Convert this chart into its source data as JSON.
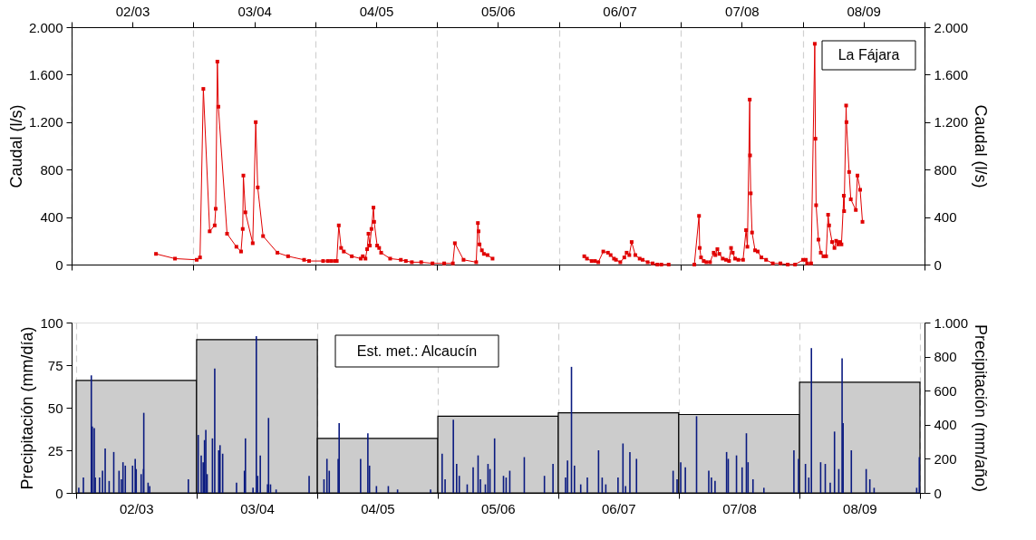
{
  "chart_data": [
    {
      "type": "line",
      "ylabel": "Caudal (l/s)",
      "y2label": "Caudal (l/s)",
      "annotations": [
        "La Fájara"
      ],
      "marker": "square",
      "grid": "x",
      "xlim": [
        "2002-10-01",
        "2009-10-01"
      ],
      "xticks": [
        {
          "value": "2002-10-01",
          "label": null
        },
        {
          "value": "2003-04-01",
          "label": "02/03"
        },
        {
          "value": "2003-10-01",
          "label": null
        },
        {
          "value": "2004-04-01",
          "label": "03/04"
        },
        {
          "value": "2004-10-01",
          "label": null
        },
        {
          "value": "2005-04-01",
          "label": "04/05"
        },
        {
          "value": "2005-10-01",
          "label": null
        },
        {
          "value": "2006-04-01",
          "label": "05/06"
        },
        {
          "value": "2006-10-01",
          "label": null
        },
        {
          "value": "2007-04-01",
          "label": "06/07"
        },
        {
          "value": "2007-10-01",
          "label": null
        },
        {
          "value": "2008-04-01",
          "label": "07/08"
        },
        {
          "value": "2008-10-01",
          "label": null
        },
        {
          "value": "2009-04-01",
          "label": "08/09"
        },
        {
          "value": "2009-10-01",
          "label": null
        }
      ],
      "ylim": [
        0,
        2000
      ],
      "yticks": [
        0,
        400,
        800,
        {
          "value": 1200,
          "label": "1.200"
        },
        {
          "value": 1600,
          "label": "1.600"
        },
        {
          "value": 2000,
          "label": "2.000"
        }
      ],
      "y2lim": [
        0,
        2000
      ],
      "y2ticks": [
        0,
        400,
        800,
        {
          "value": 1200,
          "label": "1.200"
        },
        {
          "value": 1600,
          "label": "1.600"
        },
        {
          "value": 2000,
          "label": "2.000"
        }
      ],
      "series": [
        {
          "color": "#e00000",
          "x": [
            "2003-06-11",
            "2003-08-07",
            "2003-10-11",
            "2003-10-21",
            "2003-10-31",
            "2003-11-19",
            "2003-12-04",
            "2003-12-07",
            "2003-12-12",
            "2003-12-15",
            "2004-01-10",
            "2004-02-07",
            "2004-02-21",
            "2004-02-26",
            "2004-02-28",
            "2004-03-05",
            "2004-03-27",
            "2004-04-05",
            "2004-04-11",
            "2004-04-27",
            "2004-06-09",
            "2004-07-11",
            "2004-08-28",
            "2004-09-12",
            "2004-10-24",
            "2004-11-07",
            "2004-11-17",
            "2004-11-28",
            "2004-12-04",
            "2004-12-10",
            "2004-12-17",
            "2004-12-25",
            "2005-01-18",
            "2005-02-14",
            "2005-02-20",
            "2005-02-28",
            "2005-03-05",
            "2005-03-09",
            "2005-03-13",
            "2005-03-18",
            "2005-03-24",
            "2005-03-26",
            "2005-04-04",
            "2005-04-10",
            "2005-04-16",
            "2005-05-13",
            "2005-06-14",
            "2005-06-29",
            "2005-07-17",
            "2005-08-14",
            "2005-09-17",
            "2005-10-22",
            "2005-11-17",
            "2005-11-23",
            "2005-12-19",
            "2006-01-26",
            "2006-01-31",
            "2006-02-02",
            "2006-02-05",
            "2006-02-12",
            "2006-02-18",
            "2006-03-01",
            "2006-03-16",
            "2006-07-03",
            "2006-12-16",
            "2006-12-24",
            "2007-01-07",
            "2007-01-17",
            "2007-01-27",
            "2007-02-11",
            "2007-02-25",
            "2007-03-05",
            "2007-03-15",
            "2007-03-21",
            "2007-04-03",
            "2007-04-15",
            "2007-04-22",
            "2007-04-30",
            "2007-05-07",
            "2007-05-18",
            "2007-05-31",
            "2007-06-09",
            "2007-06-24",
            "2007-07-09",
            "2007-07-23",
            "2007-08-04",
            "2007-08-26",
            "2007-10-01",
            "2007-11-11",
            "2007-11-25",
            "2007-11-27",
            "2007-12-01",
            "2007-12-09",
            "2007-12-17",
            "2007-12-28",
            "2008-01-08",
            "2008-01-13",
            "2008-01-19",
            "2008-01-25",
            "2008-02-04",
            "2008-02-14",
            "2008-02-23",
            "2008-02-29",
            "2008-03-05",
            "2008-03-12",
            "2008-03-22",
            "2008-04-05",
            "2008-04-14",
            "2008-04-18",
            "2008-04-25",
            "2008-04-26",
            "2008-04-28",
            "2008-05-02",
            "2008-05-11",
            "2008-05-19",
            "2008-05-30",
            "2008-06-13",
            "2008-07-03",
            "2008-07-26",
            "2008-08-17",
            "2008-09-08",
            "2008-10-02",
            "2008-10-10",
            "2008-10-14",
            "2008-10-26",
            "2008-11-06",
            "2008-11-08",
            "2008-11-10",
            "2008-11-17",
            "2008-11-24",
            "2008-12-02",
            "2008-12-10",
            "2008-12-16",
            "2008-12-19",
            "2008-12-28",
            "2009-01-04",
            "2009-01-09",
            "2009-01-15",
            "2009-01-19",
            "2009-01-25",
            "2009-02-01",
            "2009-02-02",
            "2009-02-08",
            "2009-02-09",
            "2009-02-17",
            "2009-02-22",
            "2009-03-09",
            "2009-03-14",
            "2009-03-22",
            "2009-03-29"
          ],
          "values": [
            90,
            50,
            40,
            60,
            1480,
            280,
            330,
            470,
            1710,
            1330,
            260,
            150,
            110,
            300,
            750,
            440,
            180,
            1200,
            650,
            240,
            100,
            70,
            40,
            30,
            30,
            30,
            30,
            30,
            30,
            330,
            140,
            110,
            70,
            50,
            70,
            50,
            130,
            260,
            160,
            300,
            480,
            360,
            160,
            140,
            100,
            50,
            40,
            30,
            20,
            20,
            10,
            10,
            10,
            180,
            40,
            20,
            350,
            280,
            170,
            120,
            90,
            80,
            50,
            null,
            70,
            50,
            30,
            30,
            20,
            110,
            100,
            80,
            50,
            40,
            20,
            60,
            100,
            80,
            190,
            80,
            50,
            40,
            20,
            10,
            0,
            0,
            0,
            null,
            0,
            410,
            140,
            60,
            30,
            20,
            20,
            100,
            80,
            130,
            90,
            50,
            40,
            30,
            140,
            100,
            50,
            40,
            40,
            290,
            150,
            1390,
            920,
            600,
            270,
            120,
            110,
            60,
            40,
            10,
            10,
            0,
            0,
            40,
            40,
            10,
            10,
            1860,
            1060,
            500,
            210,
            100,
            70,
            70,
            420,
            330,
            190,
            140,
            200,
            170,
            190,
            170,
            580,
            450,
            1340,
            1200,
            780,
            550,
            460,
            750,
            630,
            360
          ]
        }
      ]
    },
    {
      "type": "bar",
      "ylabel": "Precipitación (mm/día)",
      "y2label": "Precipitación (mm/año)",
      "annotations": [
        "Est. met.: Alcaucín"
      ],
      "grid": "x",
      "xlim": [
        "2002-10-01",
        "2009-10-01"
      ],
      "xticks": [
        {
          "value": "2002-10-01",
          "label": null
        },
        {
          "value": "2003-04-01",
          "label": "02/03"
        },
        {
          "value": "2003-10-01",
          "label": null
        },
        {
          "value": "2004-04-01",
          "label": "03/04"
        },
        {
          "value": "2004-10-01",
          "label": null
        },
        {
          "value": "2005-04-01",
          "label": "04/05"
        },
        {
          "value": "2005-10-01",
          "label": null
        },
        {
          "value": "2006-04-01",
          "label": "05/06"
        },
        {
          "value": "2006-10-01",
          "label": null
        },
        {
          "value": "2007-04-01",
          "label": "06/07"
        },
        {
          "value": "2007-10-01",
          "label": null
        },
        {
          "value": "2008-04-01",
          "label": "07/08"
        },
        {
          "value": "2008-10-01",
          "label": null
        },
        {
          "value": "2009-04-01",
          "label": "08/09"
        },
        {
          "value": "2009-10-01",
          "label": null
        }
      ],
      "ylim": [
        0,
        100
      ],
      "yticks": [
        0,
        25,
        50,
        75,
        100
      ],
      "y2lim": [
        0,
        1000
      ],
      "y2ticks": [
        0,
        200,
        400,
        600,
        800,
        {
          "value": 1000,
          "label": "1.000"
        }
      ],
      "series": [
        {
          "axis": "y2",
          "color": "#cccccc",
          "x": [
            "2002-10-01",
            "2003-10-01",
            "2004-10-01",
            "2005-10-01",
            "2006-10-01",
            "2007-10-01",
            "2008-10-01"
          ],
          "values": [
            660,
            900,
            320,
            450,
            470,
            460,
            650
          ]
        },
        {
          "color": "#0a1a80",
          "x": [
            "2002-10-09",
            "2002-10-23",
            "2002-11-16",
            "2002-11-19",
            "2002-11-25",
            "2002-11-28",
            "2002-12-11",
            "2002-12-20",
            "2002-12-28",
            "2003-01-09",
            "2003-01-23",
            "2003-02-08",
            "2003-02-15",
            "2003-02-20",
            "2003-02-27",
            "2003-03-21",
            "2003-03-29",
            "2003-04-01",
            "2003-04-16",
            "2003-04-23",
            "2003-04-24",
            "2003-05-07",
            "2003-05-12",
            "2003-09-06",
            "2003-10-06",
            "2003-10-15",
            "2003-10-21",
            "2003-10-25",
            "2003-10-29",
            "2003-11-02",
            "2003-11-18",
            "2003-11-25",
            "2003-12-07",
            "2003-12-11",
            "2003-12-19",
            "2004-01-30",
            "2004-02-23",
            "2004-02-26",
            "2004-03-20",
            "2004-03-30",
            "2004-04-03",
            "2004-04-11",
            "2004-05-03",
            "2004-05-06",
            "2004-05-12",
            "2004-05-29",
            "2004-09-06",
            "2004-10-21",
            "2004-10-30",
            "2004-11-06",
            "2004-12-03",
            "2004-12-06",
            "2005-02-09",
            "2005-03-03",
            "2005-03-08",
            "2005-03-29",
            "2005-05-04",
            "2005-06-01",
            "2005-09-09",
            "2005-10-14",
            "2005-10-23",
            "2005-11-17",
            "2005-11-27",
            "2005-12-05",
            "2005-12-29",
            "2006-01-16",
            "2006-01-31",
            "2006-02-07",
            "2006-02-22",
            "2006-03-02",
            "2006-03-08",
            "2006-03-22",
            "2006-04-18",
            "2006-04-26",
            "2006-05-07",
            "2006-06-20",
            "2006-08-20",
            "2006-09-15",
            "2006-10-23",
            "2006-10-29",
            "2006-11-10",
            "2006-11-19",
            "2006-12-08",
            "2006-12-28",
            "2007-01-31",
            "2007-02-11",
            "2007-02-22",
            "2007-03-31",
            "2007-04-15",
            "2007-04-23",
            "2007-05-06",
            "2007-05-26",
            "2007-09-14",
            "2007-09-26",
            "2007-10-07",
            "2007-10-21",
            "2007-11-24",
            "2007-12-31",
            "2008-01-08",
            "2008-01-19",
            "2008-02-23",
            "2008-02-28",
            "2008-03-24",
            "2008-04-10",
            "2008-04-23",
            "2008-04-28",
            "2008-05-13",
            "2008-06-15",
            "2008-09-14",
            "2008-09-28",
            "2008-10-19",
            "2008-10-29",
            "2008-11-06",
            "2008-12-04",
            "2008-12-18",
            "2009-01-02",
            "2009-01-15",
            "2009-01-28",
            "2009-02-07",
            "2009-02-10",
            "2009-03-07",
            "2009-04-21",
            "2009-05-02",
            "2009-05-15",
            "2009-09-21",
            "2009-09-29"
          ],
          "values": [
            3,
            9,
            69,
            39,
            38,
            9,
            9,
            13,
            26,
            7,
            24,
            13,
            8,
            18,
            16,
            16,
            20,
            14,
            11,
            14,
            47,
            6,
            4,
            8,
            34,
            22,
            18,
            31,
            37,
            11,
            32,
            73,
            25,
            28,
            23,
            6,
            13,
            32,
            3,
            92,
            10,
            22,
            5,
            44,
            5,
            2,
            10,
            8,
            20,
            13,
            20,
            41,
            20,
            35,
            16,
            4,
            4,
            2,
            2,
            23,
            8,
            43,
            17,
            10,
            5,
            15,
            22,
            8,
            5,
            17,
            14,
            32,
            10,
            9,
            13,
            21,
            10,
            17,
            9,
            19,
            74,
            16,
            5,
            9,
            25,
            9,
            5,
            9,
            29,
            4,
            24,
            20,
            13,
            8,
            18,
            15,
            45,
            13,
            9,
            7,
            24,
            20,
            22,
            15,
            35,
            18,
            8,
            3,
            25,
            20,
            17,
            9,
            85,
            18,
            17,
            6,
            36,
            14,
            79,
            41,
            25,
            14,
            8,
            3,
            3,
            21
          ]
        }
      ]
    }
  ]
}
